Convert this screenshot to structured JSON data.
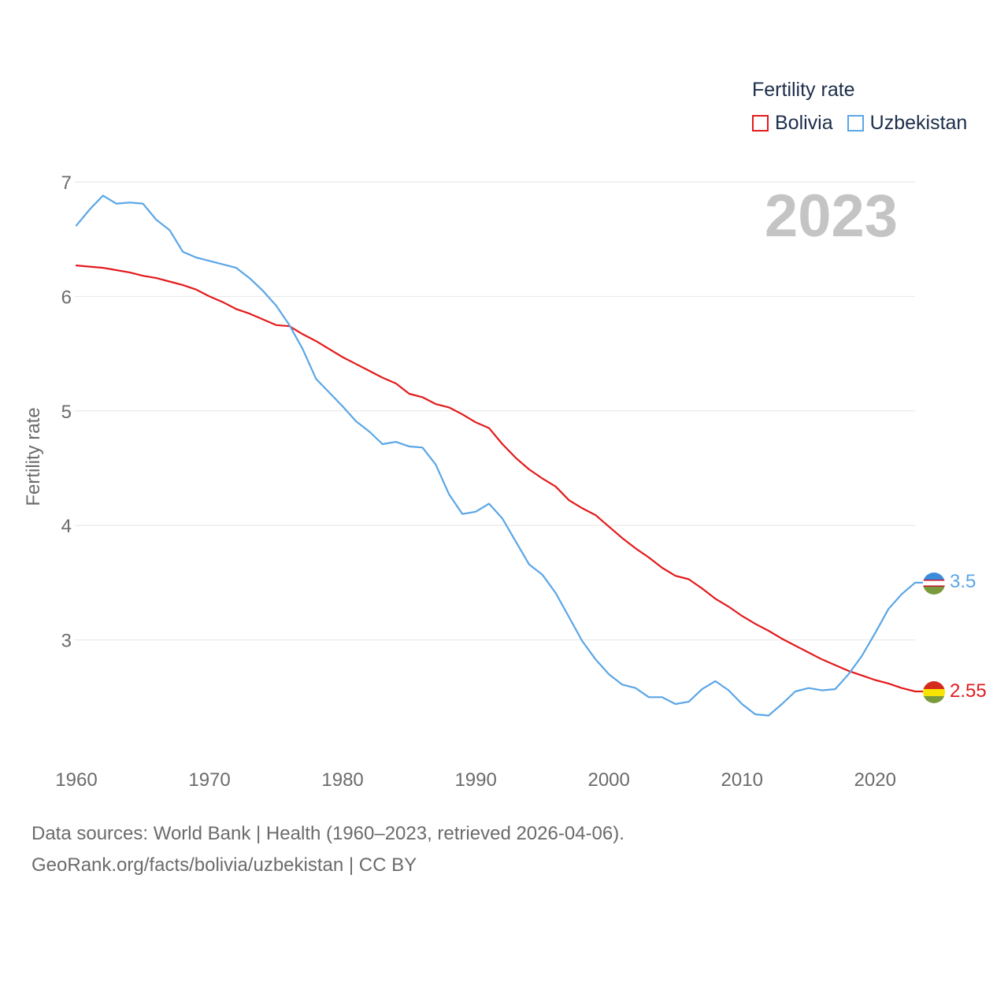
{
  "legend": {
    "title": "Fertility rate",
    "items": [
      {
        "label": "Bolivia",
        "color": "#e31a1c"
      },
      {
        "label": "Uzbekistan",
        "color": "#5aa6e6"
      }
    ]
  },
  "footer": {
    "line1": "Data sources: World Bank | Health (1960–2023, retrieved 2026-04-06).",
    "line2": "GeoRank.org/facts/bolivia/uzbekistan | CC BY"
  },
  "chart_data": {
    "type": "line",
    "title": "Fertility rate",
    "year_label": "2023",
    "xlabel": "",
    "ylabel": "Fertility rate",
    "xlim": [
      1960,
      2023
    ],
    "ylim": [
      2.0,
      7.0
    ],
    "xticks": [
      1960,
      1970,
      1980,
      1990,
      2000,
      2010,
      2020
    ],
    "yticks": [
      3,
      4,
      5,
      6,
      7
    ],
    "grid": true,
    "legend_position": "top-right",
    "x": [
      1960,
      1961,
      1962,
      1963,
      1964,
      1965,
      1966,
      1967,
      1968,
      1969,
      1970,
      1971,
      1972,
      1973,
      1974,
      1975,
      1976,
      1977,
      1978,
      1979,
      1980,
      1981,
      1982,
      1983,
      1984,
      1985,
      1986,
      1987,
      1988,
      1989,
      1990,
      1991,
      1992,
      1993,
      1994,
      1995,
      1996,
      1997,
      1998,
      1999,
      2000,
      2001,
      2002,
      2003,
      2004,
      2005,
      2006,
      2007,
      2008,
      2009,
      2010,
      2011,
      2012,
      2013,
      2014,
      2015,
      2016,
      2017,
      2018,
      2019,
      2020,
      2021,
      2022,
      2023
    ],
    "series": [
      {
        "name": "Bolivia",
        "color": "#e31a1c",
        "end_label": "2.55",
        "values": [
          6.27,
          6.26,
          6.25,
          6.23,
          6.21,
          6.18,
          6.16,
          6.13,
          6.1,
          6.06,
          6.0,
          5.95,
          5.89,
          5.85,
          5.8,
          5.75,
          5.74,
          5.67,
          5.61,
          5.54,
          5.47,
          5.41,
          5.35,
          5.29,
          5.24,
          5.15,
          5.12,
          5.06,
          5.03,
          4.97,
          4.9,
          4.85,
          4.71,
          4.59,
          4.49,
          4.41,
          4.34,
          4.22,
          4.15,
          4.09,
          3.99,
          3.89,
          3.8,
          3.72,
          3.63,
          3.56,
          3.53,
          3.45,
          3.36,
          3.29,
          3.21,
          3.14,
          3.08,
          3.01,
          2.95,
          2.89,
          2.83,
          2.78,
          2.73,
          2.69,
          2.65,
          2.62,
          2.58,
          2.55
        ]
      },
      {
        "name": "Uzbekistan",
        "color": "#5aa6e6",
        "end_label": "3.5",
        "values": [
          6.62,
          6.76,
          6.88,
          6.81,
          6.82,
          6.81,
          6.67,
          6.58,
          6.39,
          6.34,
          6.31,
          6.28,
          6.25,
          6.16,
          6.05,
          5.92,
          5.75,
          5.54,
          5.28,
          5.16,
          5.04,
          4.91,
          4.82,
          4.71,
          4.73,
          4.69,
          4.68,
          4.53,
          4.27,
          4.1,
          4.12,
          4.19,
          4.06,
          3.86,
          3.66,
          3.57,
          3.41,
          3.2,
          2.99,
          2.83,
          2.7,
          2.61,
          2.58,
          2.5,
          2.5,
          2.44,
          2.46,
          2.57,
          2.64,
          2.56,
          2.44,
          2.35,
          2.34,
          2.44,
          2.55,
          2.58,
          2.56,
          2.57,
          2.7,
          2.86,
          3.06,
          3.27,
          3.4,
          3.5
        ]
      }
    ]
  }
}
